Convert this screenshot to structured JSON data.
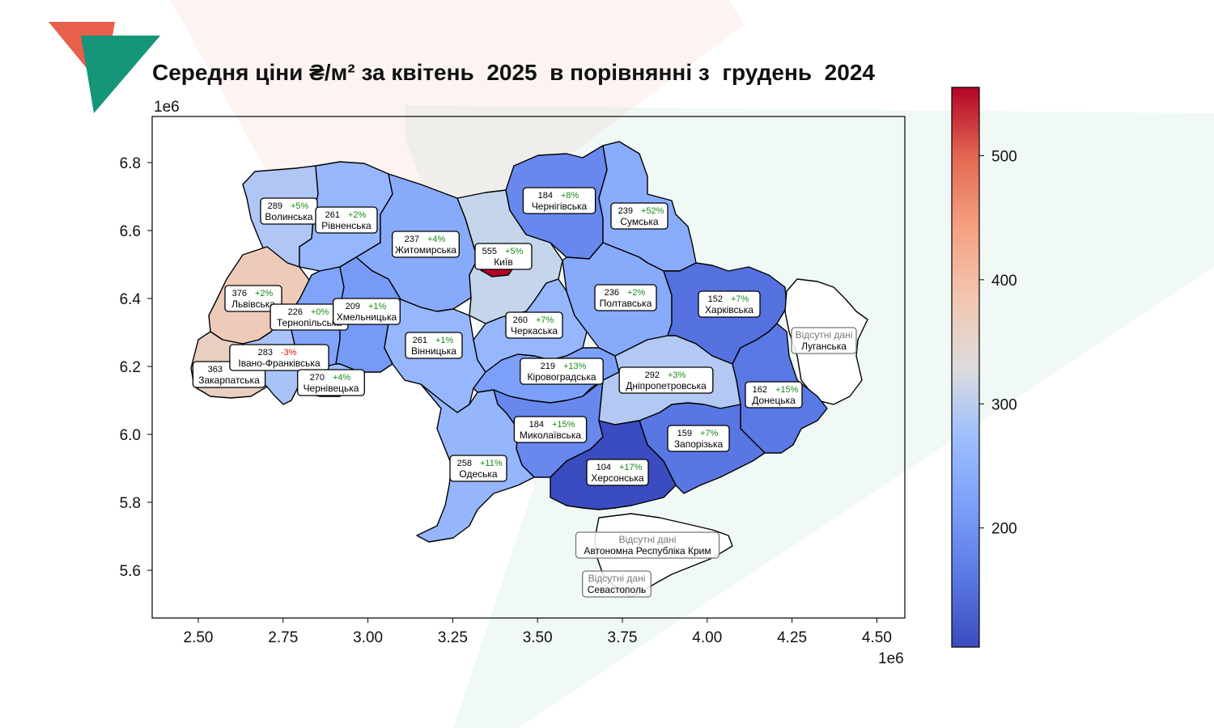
{
  "title": "Середня ціни ₴/м² за квітень  2025  в порівнянні з  грудень  2024",
  "axes": {
    "x_ticks": [
      "2.50",
      "2.75",
      "3.00",
      "3.25",
      "3.50",
      "3.75",
      "4.00",
      "4.25",
      "4.50"
    ],
    "y_ticks": [
      "6.8",
      "6.6",
      "6.4",
      "6.2",
      "6.0",
      "5.8",
      "5.6"
    ],
    "x_multiplier": "1e6",
    "y_multiplier": "1e6"
  },
  "colorbar": {
    "ticks": [
      "500",
      "400",
      "300",
      "200"
    ],
    "min": 104,
    "max": 555,
    "colormap": "coolwarm"
  },
  "missing_note": "Відсутні дані",
  "regions": [
    {
      "name": "Волинська",
      "value": "289",
      "change": "+5%"
    },
    {
      "name": "Рівненська",
      "value": "261",
      "change": "+2%"
    },
    {
      "name": "Житомирська",
      "value": "237",
      "change": "+4%"
    },
    {
      "name": "Київ",
      "value": "555",
      "change": "+5%"
    },
    {
      "name": "Чернігівська",
      "value": "184",
      "change": "+8%"
    },
    {
      "name": "Сумська",
      "value": "239",
      "change": "+52%"
    },
    {
      "name": "Львівська",
      "value": "376",
      "change": "+2%"
    },
    {
      "name": "Тернопільська",
      "value": "226",
      "change": "+0%"
    },
    {
      "name": "Хмельницька",
      "value": "209",
      "change": "+1%"
    },
    {
      "name": "Вінницька",
      "value": "261",
      "change": "+1%"
    },
    {
      "name": "Черкаська",
      "value": "260",
      "change": "+7%"
    },
    {
      "name": "Полтавська",
      "value": "236",
      "change": "+2%"
    },
    {
      "name": "Харківська",
      "value": "152",
      "change": "+7%"
    },
    {
      "name": "Закарпатська",
      "value": "363",
      "change": ""
    },
    {
      "name": "Івано-Франківська",
      "value": "283",
      "change": "-3%"
    },
    {
      "name": "Чернівецька",
      "value": "270",
      "change": "+4%"
    },
    {
      "name": "Кіровоградська",
      "value": "219",
      "change": "+13%"
    },
    {
      "name": "Дніпропетровська",
      "value": "292",
      "change": "+3%"
    },
    {
      "name": "Донецька",
      "value": "162",
      "change": "+15%"
    },
    {
      "name": "Миколаївська",
      "value": "184",
      "change": "+15%"
    },
    {
      "name": "Запорізька",
      "value": "159",
      "change": "+7%"
    },
    {
      "name": "Одеська",
      "value": "258",
      "change": "+11%"
    },
    {
      "name": "Херсонська",
      "value": "104",
      "change": "+17%"
    }
  ],
  "missing_regions": [
    "Луганська",
    "Автономна Республіка Крим",
    "Севастополь"
  ],
  "colors": {
    "logo_red": "#e8604c",
    "logo_green": "#15957a",
    "border": "#000000"
  }
}
